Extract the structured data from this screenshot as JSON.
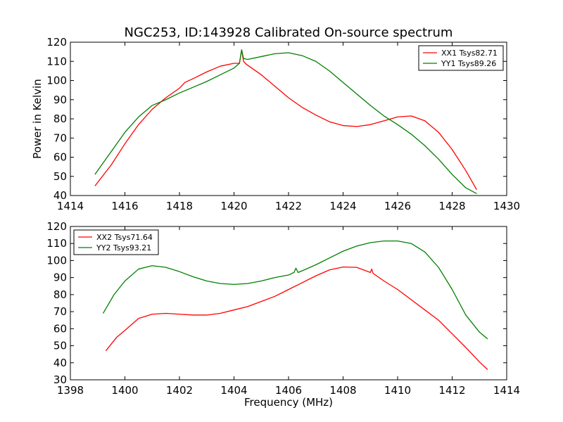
{
  "chart_data": [
    {
      "type": "line",
      "title": "NGC253, ID:143928 Calibrated On-source spectrum",
      "xlabel": "",
      "ylabel": "Power in Kelvin",
      "xlim": [
        1414,
        1430
      ],
      "ylim": [
        40,
        120
      ],
      "xticks": [
        1414,
        1416,
        1418,
        1420,
        1422,
        1424,
        1426,
        1428,
        1430
      ],
      "yticks": [
        40,
        50,
        60,
        70,
        80,
        90,
        100,
        110,
        120
      ],
      "legend_position": "top-right",
      "series": [
        {
          "name": "XX1 Tsys82.71",
          "color": "#ff0000",
          "x": [
            1414.9,
            1415.5,
            1416.0,
            1416.5,
            1417.0,
            1417.5,
            1418.0,
            1418.2,
            1418.5,
            1419.0,
            1419.5,
            1420.0,
            1420.2,
            1420.28,
            1420.35,
            1420.45,
            1420.5,
            1421.0,
            1421.5,
            1422.0,
            1422.5,
            1423.0,
            1423.5,
            1424.0,
            1424.5,
            1425.0,
            1425.5,
            1426.0,
            1426.5,
            1427.0,
            1427.5,
            1428.0,
            1428.5,
            1428.9
          ],
          "y": [
            45,
            56,
            67,
            77,
            85,
            91,
            96,
            99,
            101,
            104.5,
            107.5,
            109,
            109,
            116,
            110,
            108.5,
            108,
            103,
            97,
            91,
            86,
            82,
            78.5,
            76.5,
            76,
            77,
            79,
            81,
            81.5,
            79,
            73,
            64,
            53,
            43
          ]
        },
        {
          "name": "YY1 Tsys89.26",
          "color": "#008000",
          "x": [
            1414.9,
            1415.5,
            1416.0,
            1416.5,
            1417.0,
            1417.5,
            1418.0,
            1418.5,
            1419.0,
            1419.5,
            1420.0,
            1420.2,
            1420.28,
            1420.35,
            1420.5,
            1421.0,
            1421.5,
            1422.0,
            1422.5,
            1423.0,
            1423.5,
            1424.0,
            1424.5,
            1425.0,
            1425.5,
            1426.0,
            1426.5,
            1427.0,
            1427.5,
            1428.0,
            1428.5,
            1428.9
          ],
          "y": [
            51,
            63,
            73,
            81,
            87,
            90,
            93.5,
            96.5,
            99.5,
            103,
            106.5,
            109,
            116,
            111.5,
            111,
            112.5,
            114,
            114.5,
            113,
            110,
            105,
            99,
            93,
            87,
            81.5,
            77,
            72,
            66,
            59,
            51,
            44,
            41
          ]
        }
      ]
    },
    {
      "type": "line",
      "title": "",
      "xlabel": "Frequency (MHz)",
      "ylabel": "",
      "xlim": [
        1398,
        1414
      ],
      "ylim": [
        30,
        120
      ],
      "xticks": [
        1398,
        1400,
        1402,
        1404,
        1406,
        1408,
        1410,
        1412,
        1414
      ],
      "yticks": [
        30,
        40,
        50,
        60,
        70,
        80,
        90,
        100,
        110,
        120
      ],
      "legend_position": "top-left",
      "series": [
        {
          "name": "XX2 Tsys71.64",
          "color": "#ff0000",
          "x": [
            1399.3,
            1399.7,
            1400.0,
            1400.5,
            1401.0,
            1401.5,
            1402.0,
            1402.5,
            1403.0,
            1403.5,
            1404.0,
            1404.5,
            1405.0,
            1405.5,
            1406.0,
            1406.5,
            1407.0,
            1407.5,
            1408.0,
            1408.5,
            1409.0,
            1409.05,
            1409.1,
            1409.5,
            1410.0,
            1410.5,
            1411.0,
            1411.5,
            1412.0,
            1412.5,
            1413.0,
            1413.3
          ],
          "y": [
            47,
            55,
            59,
            66,
            68.5,
            69,
            68.5,
            68,
            68,
            69,
            71,
            73,
            76,
            79,
            83,
            87,
            91,
            94.5,
            96.2,
            96,
            93,
            95,
            92.5,
            88,
            83,
            77,
            71,
            65,
            57,
            49,
            40.5,
            36
          ]
        },
        {
          "name": "YY2 Tsys93.21",
          "color": "#008000",
          "x": [
            1399.2,
            1399.6,
            1400.0,
            1400.5,
            1401.0,
            1401.5,
            1402.0,
            1402.5,
            1403.0,
            1403.5,
            1404.0,
            1404.5,
            1405.0,
            1405.5,
            1406.0,
            1406.2,
            1406.27,
            1406.35,
            1406.5,
            1407.0,
            1407.5,
            1408.0,
            1408.5,
            1409.0,
            1409.5,
            1410.0,
            1410.5,
            1411.0,
            1411.5,
            1412.0,
            1412.5,
            1413.0,
            1413.3
          ],
          "y": [
            69,
            80,
            88,
            95,
            97,
            96,
            93.5,
            90.5,
            88,
            86.5,
            86,
            86.5,
            88,
            90,
            91.5,
            93,
            95.5,
            93,
            94,
            97.5,
            101.5,
            105.5,
            108.5,
            110.5,
            111.5,
            111.5,
            110,
            105,
            96,
            83,
            68,
            58,
            54
          ]
        }
      ]
    }
  ]
}
